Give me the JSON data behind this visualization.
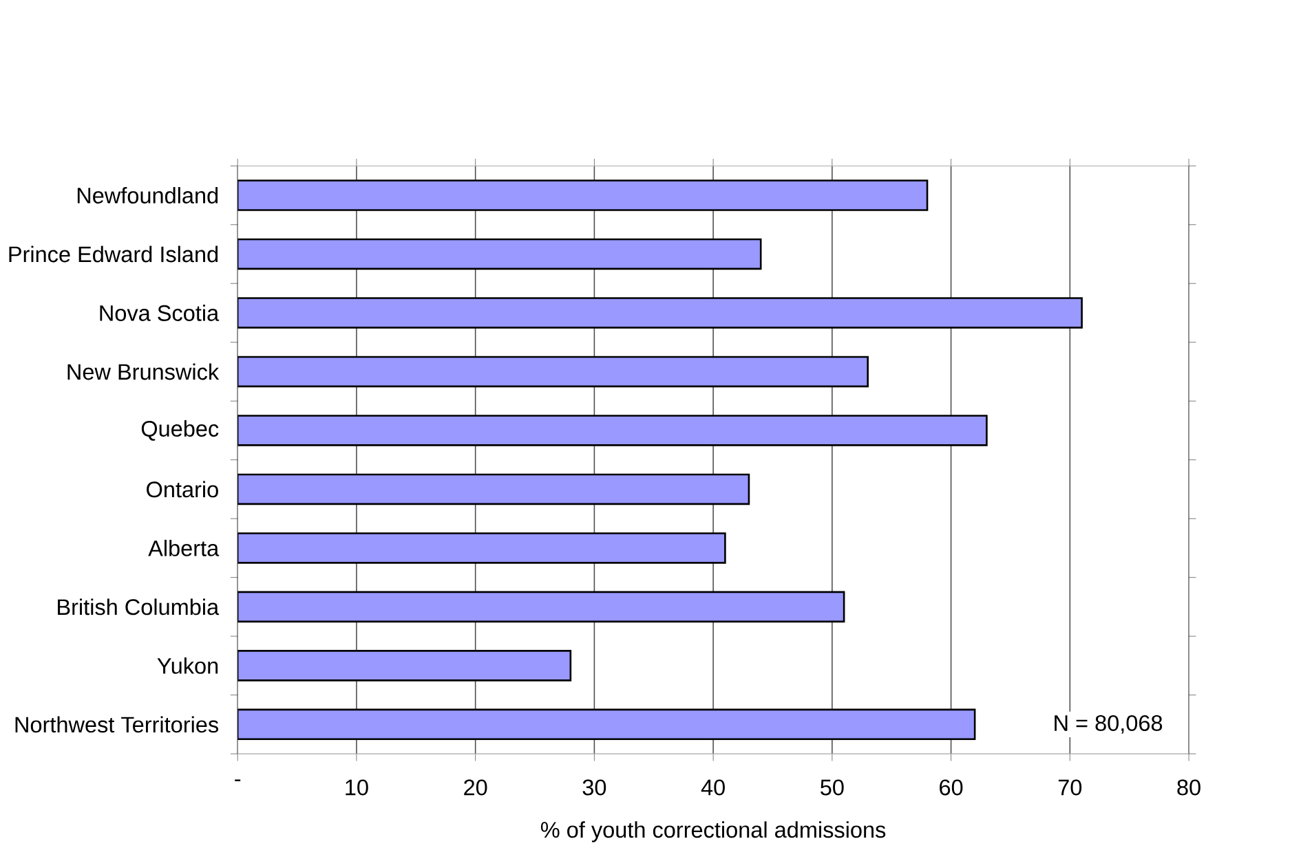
{
  "chart_data": {
    "type": "bar",
    "orientation": "horizontal",
    "categories": [
      "Newfoundland",
      "Prince Edward Island",
      "Nova Scotia",
      "New Brunswick",
      "Quebec",
      "Ontario",
      "Alberta",
      "British Columbia",
      "Yukon",
      "Northwest Territories"
    ],
    "values": [
      58,
      44,
      71,
      53,
      63,
      43,
      41,
      51,
      28,
      62
    ],
    "color": "#9999ff",
    "xlabel": "% of youth correctional admissions",
    "xlim": [
      0,
      80
    ],
    "xticks": [
      {
        "value": 0,
        "label": "-"
      },
      10,
      20,
      30,
      40,
      50,
      60,
      70,
      80
    ],
    "grid": "x",
    "annotations": [
      "N = 80,068"
    ]
  }
}
